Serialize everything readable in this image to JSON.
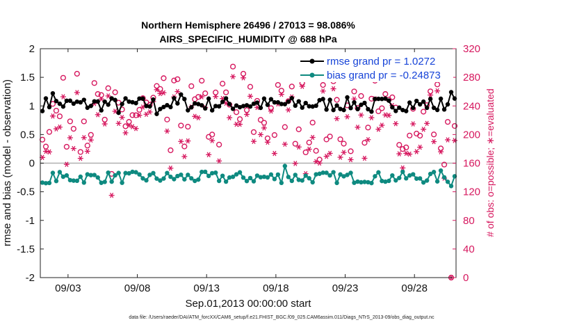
{
  "chart_data": {
    "type": "line",
    "title_line1": "Northern Hemisphere 26496 / 27013 = 98.086%",
    "title_line2": "AIRS_SPECIFIC_HUMIDITY @ 688 hPa",
    "xlabel": "Sep.01,2013 00:00:00 start",
    "ylabel_left": "rmse and bias (model - observation)",
    "ylabel_right": "# of obs: o=possible; ∗=evaluated",
    "x_tick_labels": [
      "09/03",
      "09/08",
      "09/13",
      "09/18",
      "09/23",
      "09/28"
    ],
    "x_tick_days": [
      3,
      8,
      13,
      18,
      23,
      28
    ],
    "xlim_days": [
      1,
      31
    ],
    "ylim_left": [
      -2,
      2
    ],
    "y_left_ticks": [
      "2",
      "1.5",
      "1",
      "0.5",
      "0",
      "-0.5",
      "-1",
      "-1.5",
      "-2"
    ],
    "y_left_tick_values": [
      2,
      1.5,
      1,
      0.5,
      0,
      -0.5,
      -1,
      -1.5,
      -2
    ],
    "ylim_right": [
      0,
      320
    ],
    "y_right_ticks": [
      "320",
      "280",
      "240",
      "200",
      "160",
      "120",
      "80",
      "40",
      "0"
    ],
    "y_right_tick_values": [
      320,
      280,
      240,
      200,
      160,
      120,
      80,
      40,
      0
    ],
    "series": [
      {
        "name": "rmse grand pr = 1.0272",
        "color": "#000000",
        "marker": "filled-circle",
        "axis": "left",
        "approx_mean": 1.03,
        "approx_range": [
          0.85,
          1.25
        ],
        "n_points": 120
      },
      {
        "name": "bias grand pr = -0.24873",
        "color": "#0e8a80",
        "marker": "filled-circle",
        "axis": "left",
        "approx_mean": -0.25,
        "approx_range": [
          -0.4,
          -0.05
        ],
        "n_points": 120
      },
      {
        "name": "possible obs",
        "color": "#d6175e",
        "marker": "o",
        "axis": "right",
        "approx_range": [
          0,
          290
        ],
        "n_points": 120
      },
      {
        "name": "evaluated obs",
        "color": "#d6175e",
        "marker": "*",
        "axis": "right",
        "approx_range": [
          0,
          285
        ],
        "n_points": 120
      }
    ],
    "zero_line_color": "#b0b0b0",
    "legend_position": "top-right",
    "grid": false
  },
  "footnote": "data file: /Users/raeder/DAI/ATM_forcXX/CAM6_setup/f.e21.FHIST_BGC.f09_025.CAM6assim.011/Diags_NTrS_2013-09/obs_diag_output.nc"
}
